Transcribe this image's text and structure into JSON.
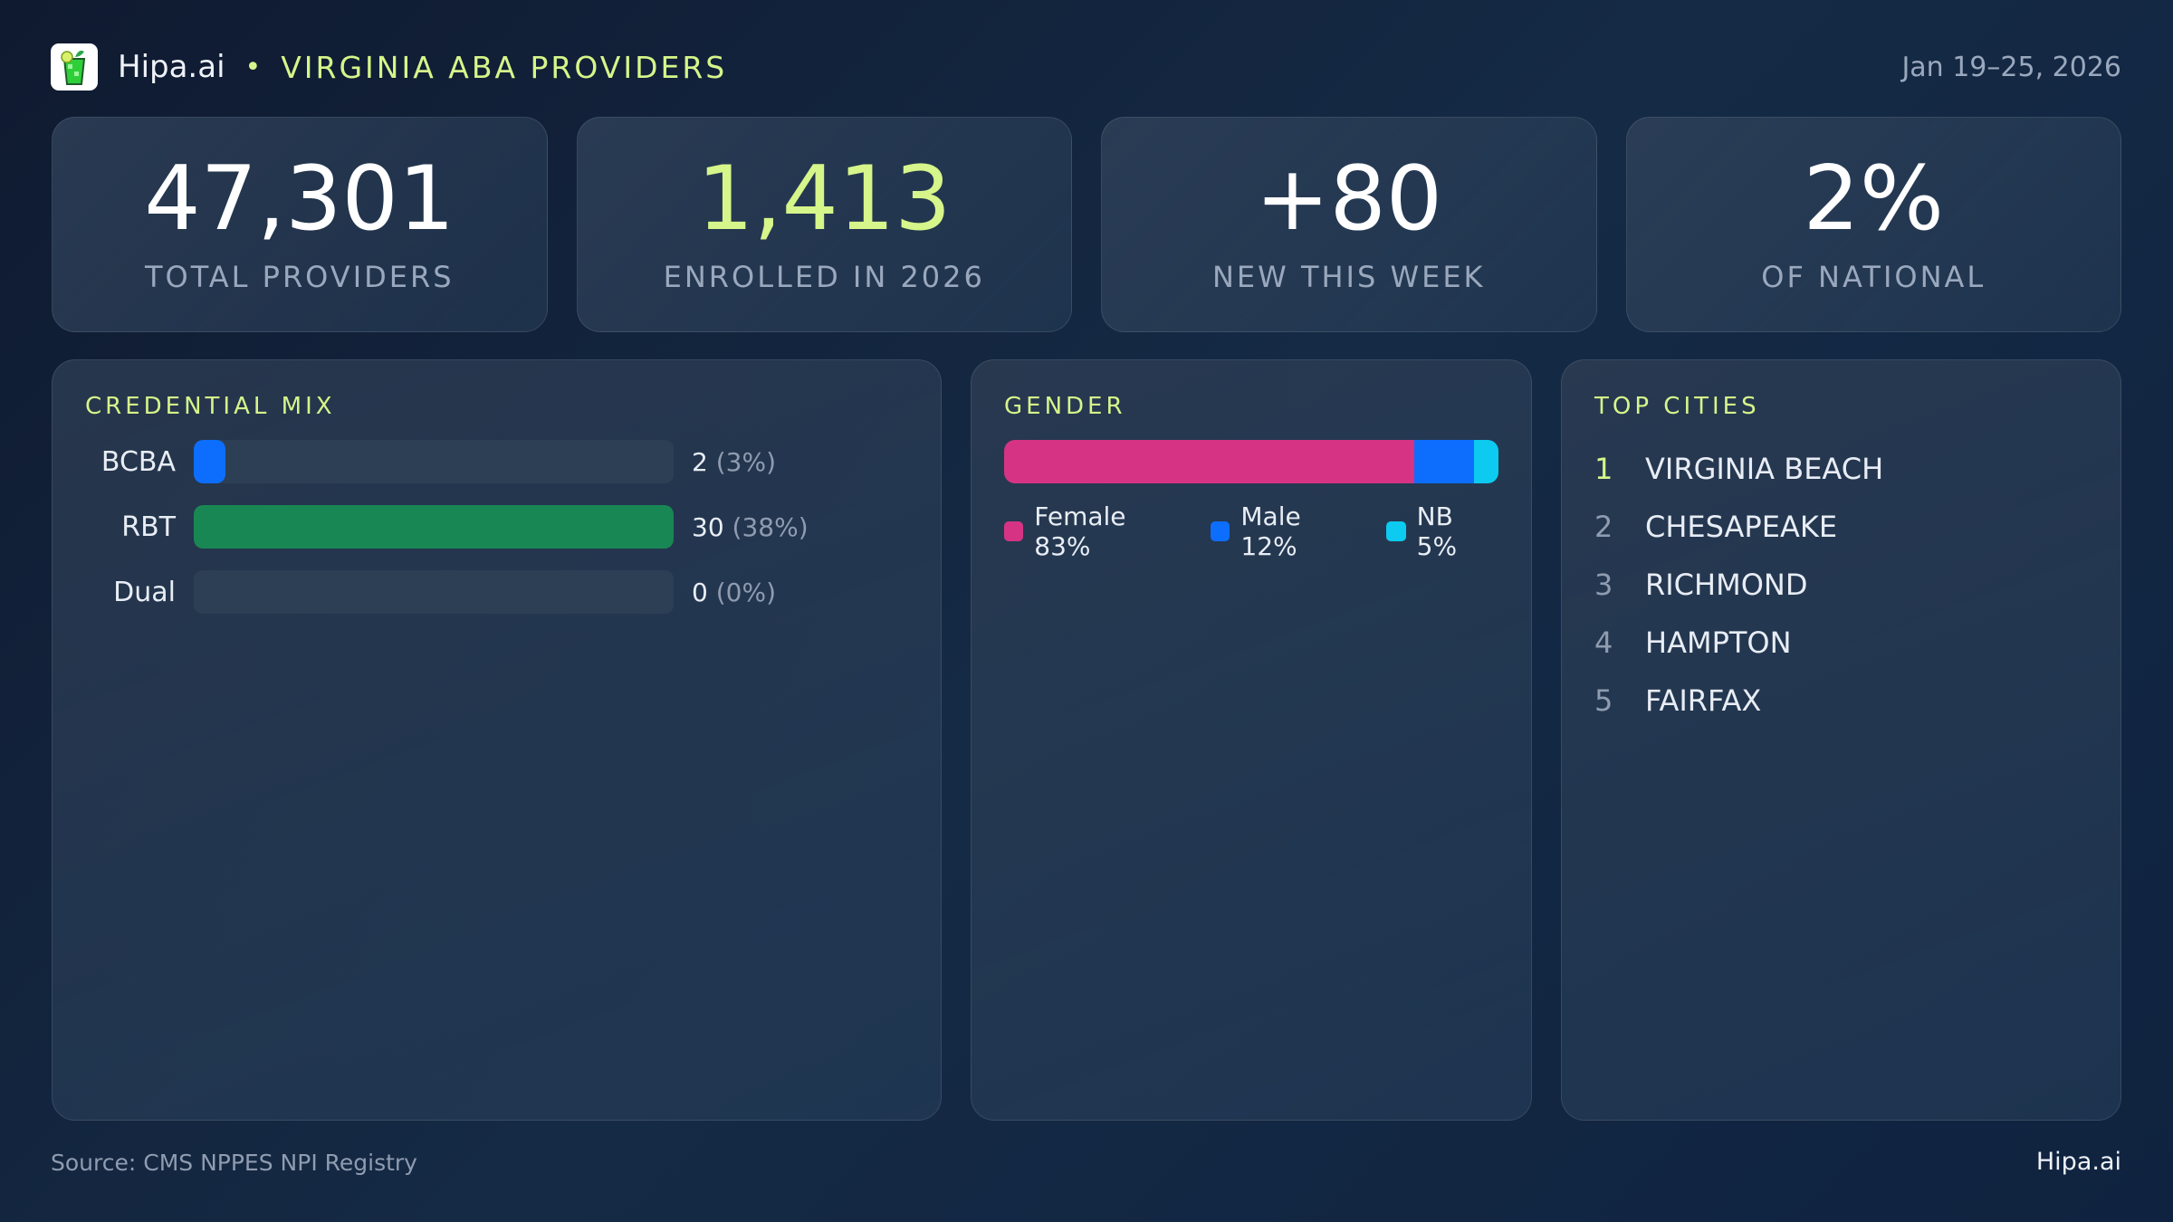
{
  "header": {
    "brand": "Hipa.ai",
    "separator": "•",
    "title": "VIRGINIA ABA PROVIDERS",
    "date_range": "Jan 19–25, 2026",
    "logo_icon": "cocktail-glass-icon"
  },
  "stats": [
    {
      "value": "47,301",
      "label": "TOTAL PROVIDERS"
    },
    {
      "value": "1,413",
      "label": "ENROLLED IN 2026",
      "highlight": true
    },
    {
      "value": "+80",
      "label": "NEW THIS WEEK"
    },
    {
      "value": "2%",
      "label": "OF NATIONAL"
    }
  ],
  "credential_mix": {
    "title": "CREDENTIAL MIX",
    "rows": [
      {
        "label": "BCBA",
        "count": 2,
        "count_text": "2",
        "pct_text": "(3%)",
        "color": "#0d6efd"
      },
      {
        "label": "RBT",
        "count": 30,
        "count_text": "30",
        "pct_text": "(38%)",
        "color": "#198754"
      },
      {
        "label": "Dual",
        "count": 0,
        "count_text": "0",
        "pct_text": "(0%)",
        "color": "#6f42c1"
      }
    ]
  },
  "gender": {
    "title": "GENDER",
    "segments": [
      {
        "label": "Female 83%",
        "pct": 83,
        "color": "#d63384"
      },
      {
        "label": "Male 12%",
        "pct": 12,
        "color": "#0d6efd"
      },
      {
        "label": "NB 5%",
        "pct": 5,
        "color": "#0dcaf0"
      }
    ]
  },
  "top_cities": {
    "title": "TOP CITIES",
    "items": [
      {
        "rank": "1",
        "name": "VIRGINIA BEACH"
      },
      {
        "rank": "2",
        "name": "CHESAPEAKE"
      },
      {
        "rank": "3",
        "name": "RICHMOND"
      },
      {
        "rank": "4",
        "name": "HAMPTON"
      },
      {
        "rank": "5",
        "name": "FAIRFAX"
      }
    ]
  },
  "footer": {
    "source": "Source: CMS NPPES NPI Registry",
    "brand": "Hipa.ai"
  }
}
